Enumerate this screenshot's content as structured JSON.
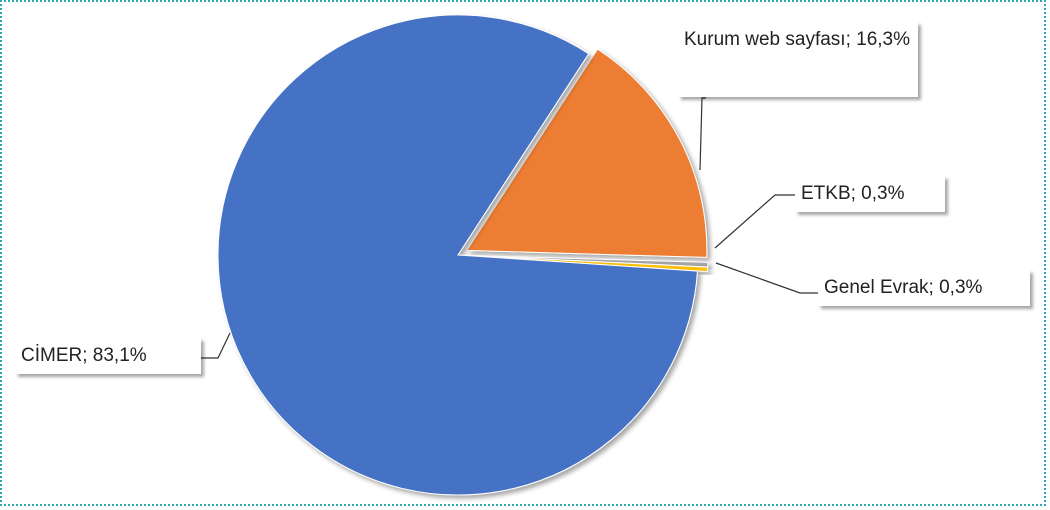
{
  "chart_data": {
    "type": "pie",
    "values": [
      16.3,
      0.3,
      0.3,
      83.1
    ],
    "value_labels": [
      "Kurum web sayfası; 16,3%",
      "ETKB; 0,3%",
      "Genel Evrak; 0,3%",
      "CİMER; 83,1%"
    ],
    "colors": [
      "#ed7d31",
      "#a5a5a5",
      "#ffc000",
      "#4472c4"
    ]
  }
}
